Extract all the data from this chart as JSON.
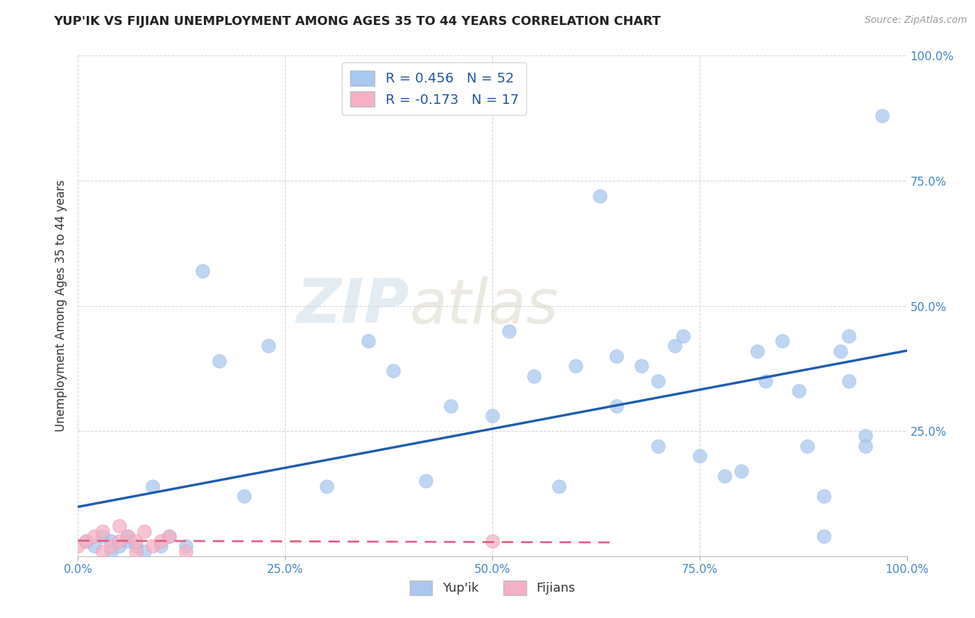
{
  "title": "YUP'IK VS FIJIAN UNEMPLOYMENT AMONG AGES 35 TO 44 YEARS CORRELATION CHART",
  "source": "Source: ZipAtlas.com",
  "ylabel": "Unemployment Among Ages 35 to 44 years",
  "xlim": [
    0,
    1.0
  ],
  "ylim": [
    0,
    1.0
  ],
  "xtick_vals": [
    0.0,
    0.25,
    0.5,
    0.75,
    1.0
  ],
  "ytick_vals": [
    0.0,
    0.25,
    0.5,
    0.75,
    1.0
  ],
  "yupik_color": "#a8c8f0",
  "fijian_color": "#f5b0c5",
  "yupik_line_color": "#1a5cb0",
  "fijian_line_color": "#e06080",
  "legend_yupik_label": "R = 0.456   N = 52",
  "legend_fijian_label": "R = -0.173   N = 17",
  "legend_yupik_name": "Yup'ik",
  "legend_fijian_name": "Fijians",
  "watermark_zip": "ZIP",
  "watermark_atlas": "atlas",
  "background_color": "#ffffff",
  "grid_color": "#cccccc",
  "yupik_x": [
    0.01,
    0.02,
    0.03,
    0.04,
    0.04,
    0.05,
    0.06,
    0.06,
    0.07,
    0.08,
    0.09,
    0.1,
    0.11,
    0.13,
    0.15,
    0.17,
    0.2,
    0.23,
    0.3,
    0.35,
    0.38,
    0.42,
    0.45,
    0.5,
    0.52,
    0.55,
    0.58,
    0.6,
    0.63,
    0.65,
    0.65,
    0.68,
    0.7,
    0.7,
    0.72,
    0.73,
    0.75,
    0.78,
    0.8,
    0.82,
    0.83,
    0.85,
    0.87,
    0.88,
    0.9,
    0.9,
    0.92,
    0.93,
    0.93,
    0.95,
    0.95,
    0.97
  ],
  "yupik_y": [
    0.03,
    0.02,
    0.04,
    0.03,
    0.01,
    0.02,
    0.04,
    0.03,
    0.02,
    0.01,
    0.14,
    0.02,
    0.04,
    0.02,
    0.57,
    0.39,
    0.12,
    0.42,
    0.14,
    0.43,
    0.37,
    0.15,
    0.3,
    0.28,
    0.45,
    0.36,
    0.14,
    0.38,
    0.72,
    0.4,
    0.3,
    0.38,
    0.35,
    0.22,
    0.42,
    0.44,
    0.2,
    0.16,
    0.17,
    0.41,
    0.35,
    0.43,
    0.33,
    0.22,
    0.12,
    0.04,
    0.41,
    0.44,
    0.35,
    0.24,
    0.22,
    0.88
  ],
  "fijian_x": [
    0.0,
    0.01,
    0.02,
    0.03,
    0.03,
    0.04,
    0.05,
    0.05,
    0.06,
    0.07,
    0.07,
    0.08,
    0.09,
    0.1,
    0.11,
    0.13,
    0.5
  ],
  "fijian_y": [
    0.02,
    0.03,
    0.04,
    0.01,
    0.05,
    0.02,
    0.03,
    0.06,
    0.04,
    0.01,
    0.03,
    0.05,
    0.02,
    0.03,
    0.04,
    0.01,
    0.03
  ]
}
